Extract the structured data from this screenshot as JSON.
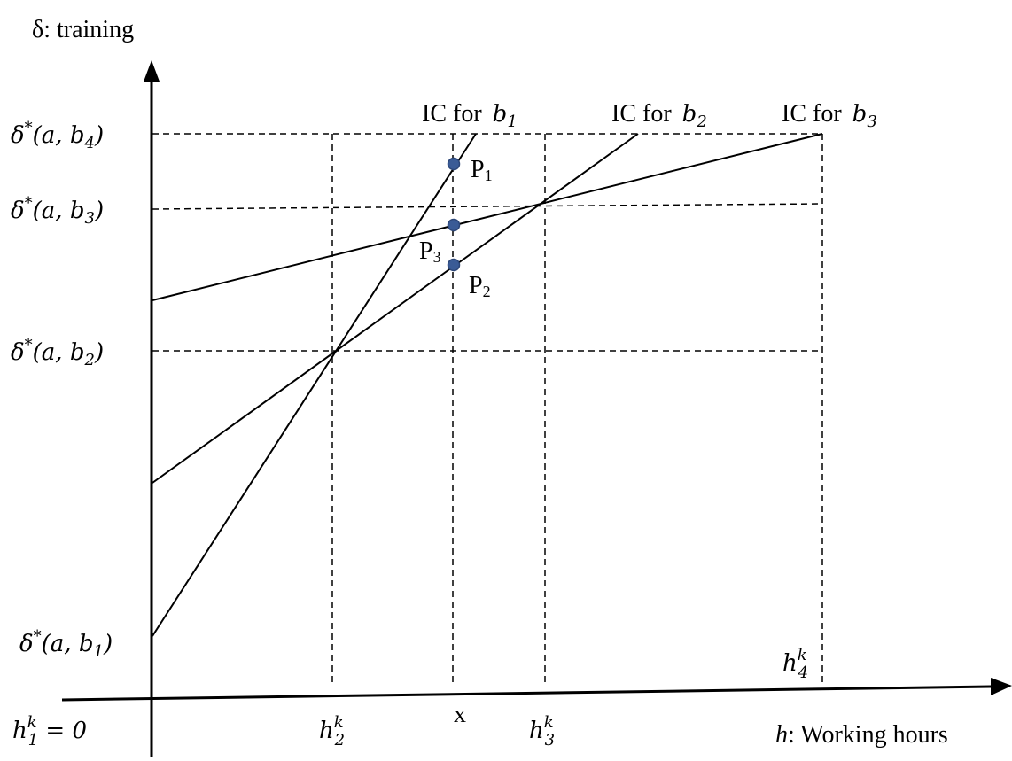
{
  "yaxis_label": "δ: training",
  "xaxis_label_h": "h",
  "xaxis_label_rest": ": Working hours",
  "ic_prefix": "IC for",
  "ic_curves": [
    {
      "var": "b",
      "sub": "1"
    },
    {
      "var": "b",
      "sub": "2"
    },
    {
      "var": "b",
      "sub": "3"
    }
  ],
  "y_ticks": [
    {
      "delta": "δ",
      "sup": "*",
      "args": "(a, b",
      "sub": "4",
      "close": ")"
    },
    {
      "delta": "δ",
      "sup": "*",
      "args": "(a, b",
      "sub": "3",
      "close": ")"
    },
    {
      "delta": "δ",
      "sup": "*",
      "args": "(a, b",
      "sub": "2",
      "close": ")"
    },
    {
      "delta": "δ",
      "sup": "*",
      "args": "(a, b",
      "sub": "1",
      "close": ")"
    }
  ],
  "x_ticks": {
    "h1": {
      "var": "h",
      "sup": "k",
      "sub": "1",
      "rest": " = 0"
    },
    "h2": {
      "var": "h",
      "sup": "k",
      "sub": "2"
    },
    "x": "x",
    "h3": {
      "var": "h",
      "sup": "k",
      "sub": "3"
    },
    "h4": {
      "var": "h",
      "sup": "k",
      "sub": "4"
    }
  },
  "points": [
    {
      "main": "P",
      "sub": "1"
    },
    {
      "main": "P",
      "sub": "2"
    },
    {
      "main": "P",
      "sub": "3"
    }
  ],
  "colors": {
    "point_fill": "#3a5b96",
    "line": "#000000"
  }
}
